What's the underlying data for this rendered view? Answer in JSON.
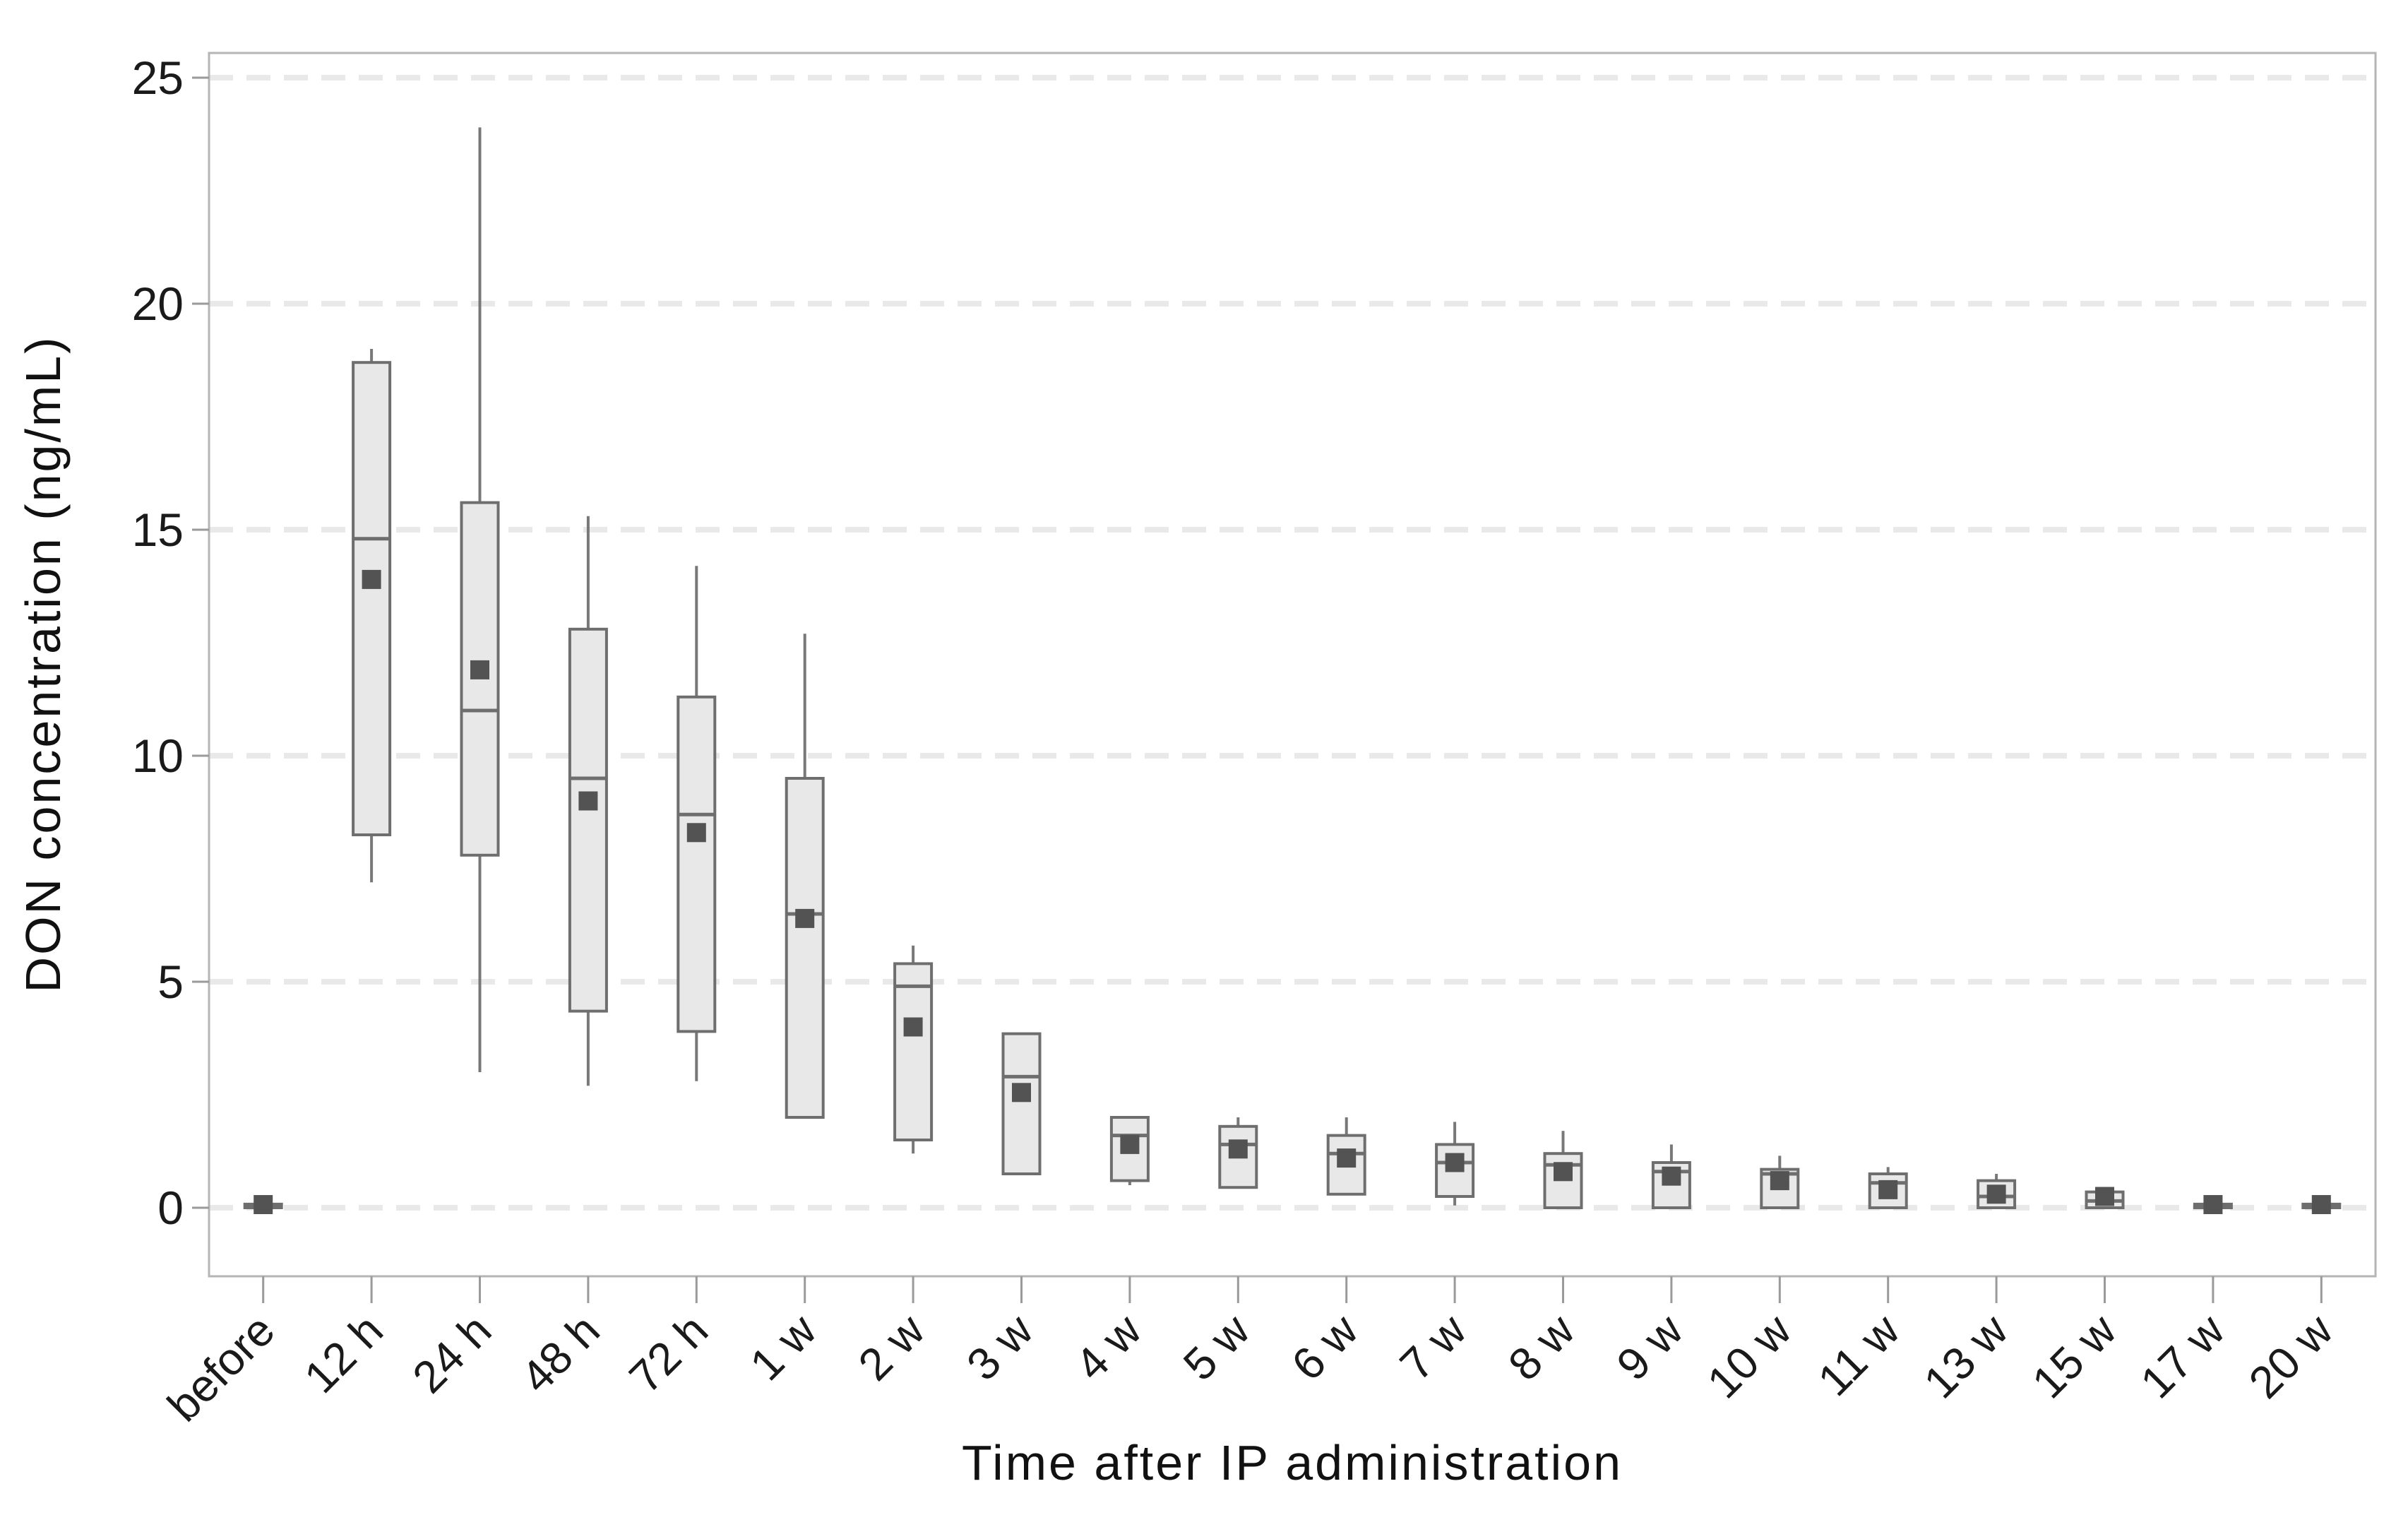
{
  "figure": {
    "background": "#ffffff",
    "x_axis_title": "Time after IP administration",
    "y_axis_title": "DON concentration (ng/mL)"
  },
  "colors": {
    "box_fill": "#e8e8e8",
    "box_border": "#6e6e6e",
    "median_line": "#6e6e6e",
    "whisker": "#787878",
    "mean_marker": "#535353",
    "gridline": "#e9e9e9",
    "frame": "#b5b5b5",
    "tick": "#9a9a9a",
    "text": "#1a1a1a"
  },
  "chart_data": {
    "type": "boxplot",
    "title": "",
    "xlabel": "Time after IP administration",
    "ylabel": "DON concentration (ng/mL)",
    "ylim": [
      -1.5,
      25.5
    ],
    "y_ticks": [
      0,
      5,
      10,
      15,
      20,
      25
    ],
    "y_tick_labels": [
      "0",
      "5",
      "10",
      "15",
      "20",
      "25"
    ],
    "grid": "horizontal-dashed",
    "legend": "none",
    "mean_marker": "filled-square",
    "categories": [
      "before",
      "12 h",
      "24 h",
      "48 h",
      "72 h",
      "1 w",
      "2 w",
      "3 w",
      "4 w",
      "5 w",
      "6 w",
      "7 w",
      "8 w",
      "9 w",
      "10 w",
      "11 w",
      "13 w",
      "15 w",
      "17 w",
      "20 w"
    ],
    "series": [
      {
        "name": "DON concentration boxplot",
        "boxes": [
          {
            "category": "before",
            "whisker_low": null,
            "q1": 0.0,
            "median": 0.03,
            "q3": 0.08,
            "whisker_high": null,
            "mean": 0.07
          },
          {
            "category": "12 h",
            "whisker_low": 7.2,
            "q1": 8.25,
            "median": 14.8,
            "q3": 18.7,
            "whisker_high": 19.0,
            "mean": 13.9
          },
          {
            "category": "24 h",
            "whisker_low": 3.0,
            "q1": 7.8,
            "median": 11.0,
            "q3": 15.6,
            "whisker_high": 23.9,
            "mean": 11.9
          },
          {
            "category": "48 h",
            "whisker_low": 2.7,
            "q1": 4.35,
            "median": 9.5,
            "q3": 12.8,
            "whisker_high": 15.3,
            "mean": 9.0
          },
          {
            "category": "72 h",
            "whisker_low": 2.8,
            "q1": 3.9,
            "median": 8.7,
            "q3": 11.3,
            "whisker_high": 14.2,
            "mean": 8.3
          },
          {
            "category": "1 w",
            "whisker_low": null,
            "q1": 2.0,
            "median": 6.5,
            "q3": 9.5,
            "whisker_high": 12.7,
            "mean": 6.4
          },
          {
            "category": "2 w",
            "whisker_low": 1.2,
            "q1": 1.5,
            "median": 4.9,
            "q3": 5.4,
            "whisker_high": 5.8,
            "mean": 4.0
          },
          {
            "category": "3 w",
            "whisker_low": null,
            "q1": 0.75,
            "median": 2.9,
            "q3": 3.85,
            "whisker_high": null,
            "mean": 2.55
          },
          {
            "category": "4 w",
            "whisker_low": 0.5,
            "q1": 0.6,
            "median": 1.6,
            "q3": 2.0,
            "whisker_high": null,
            "mean": 1.4
          },
          {
            "category": "5 w",
            "whisker_low": null,
            "q1": 0.45,
            "median": 1.4,
            "q3": 1.8,
            "whisker_high": 2.0,
            "mean": 1.3
          },
          {
            "category": "6 w",
            "whisker_low": null,
            "q1": 0.3,
            "median": 1.2,
            "q3": 1.6,
            "whisker_high": 2.0,
            "mean": 1.1
          },
          {
            "category": "7 w",
            "whisker_low": 0.05,
            "q1": 0.25,
            "median": 1.0,
            "q3": 1.4,
            "whisker_high": 1.9,
            "mean": 1.0
          },
          {
            "category": "8 w",
            "whisker_low": null,
            "q1": 0.0,
            "median": 0.95,
            "q3": 1.2,
            "whisker_high": 1.7,
            "mean": 0.8
          },
          {
            "category": "9 w",
            "whisker_low": null,
            "q1": 0.0,
            "median": 0.8,
            "q3": 1.0,
            "whisker_high": 1.4,
            "mean": 0.7
          },
          {
            "category": "10 w",
            "whisker_low": null,
            "q1": 0.0,
            "median": 0.75,
            "q3": 0.85,
            "whisker_high": 1.15,
            "mean": 0.6
          },
          {
            "category": "11 w",
            "whisker_low": null,
            "q1": 0.0,
            "median": 0.55,
            "q3": 0.75,
            "whisker_high": 0.9,
            "mean": 0.4
          },
          {
            "category": "13 w",
            "whisker_low": null,
            "q1": 0.0,
            "median": 0.25,
            "q3": 0.6,
            "whisker_high": 0.75,
            "mean": 0.3
          },
          {
            "category": "15 w",
            "whisker_low": null,
            "q1": 0.0,
            "median": 0.15,
            "q3": 0.35,
            "whisker_high": null,
            "mean": 0.25
          },
          {
            "category": "17 w",
            "whisker_low": null,
            "q1": 0.0,
            "median": 0.03,
            "q3": 0.08,
            "whisker_high": null,
            "mean": 0.07
          },
          {
            "category": "20 w",
            "whisker_low": null,
            "q1": 0.0,
            "median": 0.03,
            "q3": 0.08,
            "whisker_high": null,
            "mean": 0.07
          }
        ]
      }
    ]
  }
}
